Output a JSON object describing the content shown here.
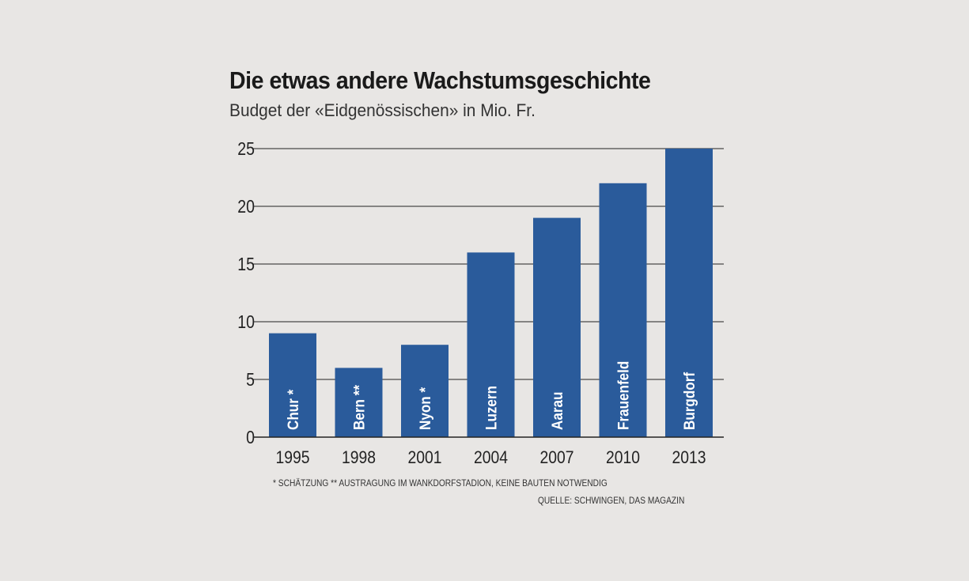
{
  "chart_data": {
    "type": "bar",
    "title": "Die etwas andere Wachstumsgeschichte",
    "subtitle": "Budget der «Eidgenössischen» in Mio. Fr.",
    "categories": [
      "1995",
      "1998",
      "2001",
      "2004",
      "2007",
      "2010",
      "2013"
    ],
    "bar_labels": [
      "Chur *",
      "Bern **",
      "Nyon *",
      "Luzern",
      "Aarau",
      "Frauenfeld",
      "Burgdorf"
    ],
    "values": [
      9,
      6,
      8,
      16,
      19,
      22,
      25
    ],
    "ylim": [
      0,
      25
    ],
    "yticks": [
      0,
      5,
      10,
      15,
      20,
      25
    ],
    "grid": true,
    "bar_color": "#2a5b9b",
    "footnote": "* SCHÄTZUNG   ** AUSTRAGUNG IM WANKDORFSTADION, KEINE BAUTEN NOTWENDIG",
    "source": "QUELLE: SCHWINGEN, DAS MAGAZIN"
  }
}
